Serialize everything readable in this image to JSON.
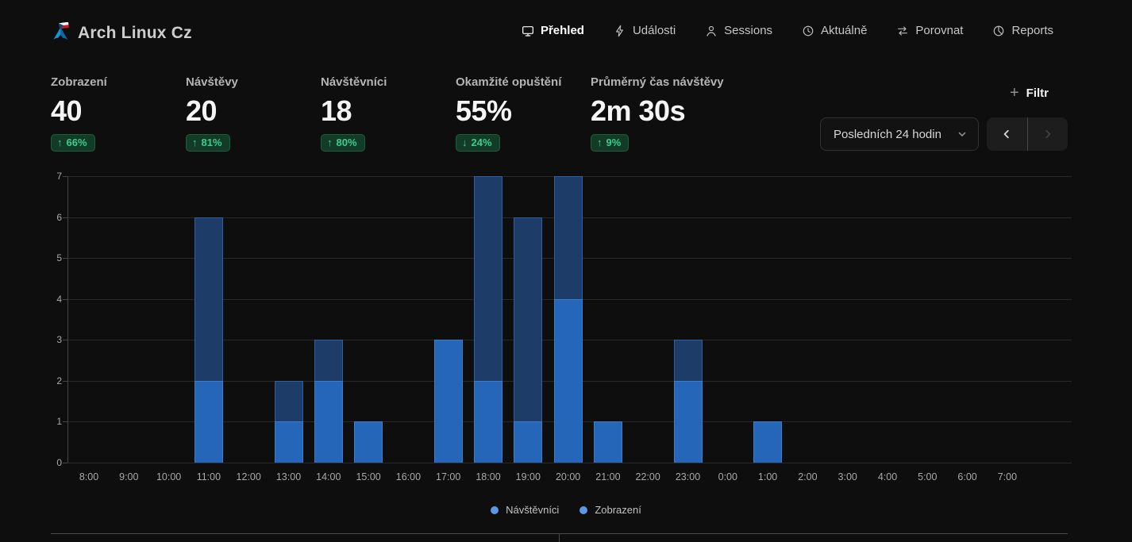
{
  "header": {
    "title": "Arch Linux Cz",
    "nav": [
      {
        "label": "Přehled",
        "icon": "monitor-icon",
        "active": true
      },
      {
        "label": "Události",
        "icon": "zap-icon",
        "active": false
      },
      {
        "label": "Sessions",
        "icon": "user-icon",
        "active": false
      },
      {
        "label": "Aktuálně",
        "icon": "clock-icon",
        "active": false
      },
      {
        "label": "Porovnat",
        "icon": "compare-icon",
        "active": false
      },
      {
        "label": "Reports",
        "icon": "pie-icon",
        "active": false
      }
    ]
  },
  "stats": [
    {
      "label": "Zobrazení",
      "value": "40",
      "change": "66%",
      "direction": "up"
    },
    {
      "label": "Návštěvy",
      "value": "20",
      "change": "81%",
      "direction": "up"
    },
    {
      "label": "Návštěvníci",
      "value": "18",
      "change": "80%",
      "direction": "up"
    },
    {
      "label": "Okamžité opuštění",
      "value": "55%",
      "change": "24%",
      "direction": "down"
    },
    {
      "label": "Průměrný čas návštěvy",
      "value": "2m 30s",
      "change": "9%",
      "direction": "up"
    }
  ],
  "toolbar": {
    "filter_label": "Filtr",
    "date_range": "Posledních 24 hodin"
  },
  "chart_data": {
    "type": "bar",
    "overlay": true,
    "title": "",
    "xlabel": "",
    "ylabel": "",
    "ylim": [
      0,
      7
    ],
    "yticks": [
      0,
      1,
      2,
      3,
      4,
      5,
      6,
      7
    ],
    "grid": true,
    "legend_position": "bottom",
    "categories": [
      "8:00",
      "9:00",
      "10:00",
      "11:00",
      "12:00",
      "13:00",
      "14:00",
      "15:00",
      "16:00",
      "17:00",
      "18:00",
      "19:00",
      "20:00",
      "21:00",
      "22:00",
      "23:00",
      "0:00",
      "1:00",
      "2:00",
      "3:00",
      "4:00",
      "5:00",
      "6:00",
      "7:00"
    ],
    "series": [
      {
        "name": "Zobrazení",
        "color": "#1d3d68",
        "border": "#2e5f9e",
        "values": [
          0,
          0,
          0,
          6,
          0,
          2,
          3,
          1,
          0,
          3,
          7,
          6,
          7,
          1,
          0,
          3,
          0,
          1,
          0,
          0,
          0,
          0,
          0,
          0
        ]
      },
      {
        "name": "Návštěvníci",
        "color": "#2666b8",
        "border": "#3b7ccc",
        "values": [
          0,
          0,
          0,
          2,
          0,
          1,
          2,
          1,
          0,
          3,
          2,
          1,
          4,
          1,
          0,
          2,
          0,
          1,
          0,
          0,
          0,
          0,
          0,
          0
        ]
      }
    ],
    "legend": [
      {
        "label": "Návštěvníci",
        "color": "#5d97e5"
      },
      {
        "label": "Zobrazení",
        "color": "#5d97e5"
      }
    ]
  },
  "colors": {
    "background": "#0e0e0f",
    "badge_bg": "#123c28",
    "badge_text": "#3bcd8e",
    "bar_views": "#1d3d68",
    "bar_visitors": "#2666b8",
    "accent_blue": "#1793d1"
  }
}
